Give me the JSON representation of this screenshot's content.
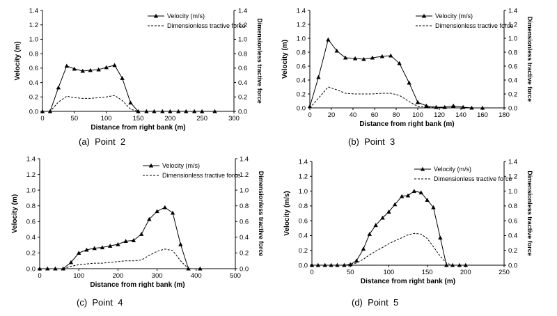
{
  "chart_data": [
    {
      "type": "line",
      "caption": "(a)  Point  2",
      "xlabel": "Distance from right bank (m)",
      "ylabel": "Velocity (m)",
      "y2label": "Dimensionless tractive force",
      "xlim": [
        0,
        300
      ],
      "xticks": [
        0,
        50,
        100,
        150,
        200,
        250,
        300
      ],
      "ylim": [
        0,
        1.4
      ],
      "yticks": [
        "0.0",
        "0.2",
        "0.4",
        "0.6",
        "0.8",
        "1.0",
        "1.2",
        "1.4"
      ],
      "y2ticks": [
        "0.0",
        "0.2",
        "0.4",
        "0.6",
        "0.8",
        "1.0",
        "1.2",
        "1.4"
      ],
      "legend_position": "top-right",
      "series": [
        {
          "name": "Velocity (m/s)",
          "style": "solid-triangle",
          "x": [
            0,
            12,
            25,
            38,
            50,
            63,
            75,
            88,
            100,
            113,
            125,
            138,
            150,
            163,
            175,
            188,
            200,
            213,
            225,
            238,
            250,
            270
          ],
          "y": [
            0,
            0,
            0.33,
            0.63,
            0.59,
            0.56,
            0.57,
            0.58,
            0.61,
            0.64,
            0.46,
            0.12,
            0,
            0,
            0,
            0,
            0,
            0,
            0,
            0,
            0,
            0
          ]
        },
        {
          "name": "Dimensionless tractive force",
          "style": "dashed",
          "x": [
            0,
            12,
            25,
            38,
            50,
            63,
            75,
            88,
            100,
            113,
            125,
            138,
            150
          ],
          "y": [
            0,
            0,
            0.13,
            0.21,
            0.19,
            0.18,
            0.18,
            0.19,
            0.2,
            0.22,
            0.15,
            0.03,
            0
          ]
        }
      ]
    },
    {
      "type": "line",
      "caption": "(b)  Point  3",
      "xlabel": "Distance from right bank (m)",
      "ylabel": "Velocity (m)",
      "y2label": "Dimensionless tractive force",
      "xlim": [
        0,
        180
      ],
      "xticks": [
        0,
        20,
        40,
        60,
        80,
        100,
        120,
        140,
        160,
        180
      ],
      "ylim": [
        0,
        1.4
      ],
      "yticks": [
        "0.0",
        "0.2",
        "0.4",
        "0.6",
        "0.8",
        "1.0",
        "1.2",
        "1.4"
      ],
      "y2ticks": [
        "0.0",
        "0.2",
        "0.4",
        "0.6",
        "0.8",
        "1.0",
        "1.2",
        "1.4"
      ],
      "legend_position": "top-right",
      "series": [
        {
          "name": "Velocity (m/s)",
          "style": "solid-triangle",
          "x": [
            0,
            8,
            17,
            25,
            33,
            42,
            50,
            58,
            67,
            75,
            83,
            92,
            100,
            108,
            117,
            125,
            133,
            142,
            150,
            160
          ],
          "y": [
            0.02,
            0.44,
            0.98,
            0.82,
            0.72,
            0.71,
            0.7,
            0.72,
            0.74,
            0.75,
            0.64,
            0.36,
            0.08,
            0.03,
            0.01,
            0.01,
            0.03,
            0.01,
            0,
            0
          ]
        },
        {
          "name": "Dimensionless tractive force",
          "style": "dashed",
          "x": [
            0,
            8,
            17,
            25,
            33,
            42,
            50,
            58,
            67,
            75,
            83,
            92,
            100,
            108,
            117,
            125
          ],
          "y": [
            0,
            0.14,
            0.3,
            0.26,
            0.21,
            0.2,
            0.2,
            0.2,
            0.21,
            0.21,
            0.18,
            0.09,
            0.02,
            0.01,
            0,
            0
          ]
        }
      ]
    },
    {
      "type": "line",
      "caption": "(c)  Point  4",
      "xlabel": "Distance from right bank (m)",
      "ylabel": "Velocity (m)",
      "y2label": "Dimensionless tractive force",
      "xlim": [
        0,
        500
      ],
      "xticks": [
        0,
        100,
        200,
        300,
        400,
        500
      ],
      "ylim": [
        0,
        1.4
      ],
      "yticks": [
        "0.0",
        "0.2",
        "0.4",
        "0.6",
        "0.8",
        "1.0",
        "1.2",
        "1.4"
      ],
      "y2ticks": [
        "0.0",
        "0.2",
        "0.4",
        "0.6",
        "0.8",
        "1.0",
        "1.2",
        "1.4"
      ],
      "legend_position": "top-right",
      "series": [
        {
          "name": "Velocity (m/s)",
          "style": "solid-triangle",
          "x": [
            0,
            20,
            40,
            60,
            80,
            100,
            120,
            140,
            160,
            180,
            200,
            220,
            240,
            260,
            280,
            300,
            320,
            340,
            360,
            380,
            410
          ],
          "y": [
            0,
            0,
            0,
            0,
            0.08,
            0.2,
            0.24,
            0.26,
            0.27,
            0.29,
            0.31,
            0.35,
            0.36,
            0.44,
            0.63,
            0.73,
            0.78,
            0.71,
            0.31,
            0,
            0
          ]
        },
        {
          "name": "Dimensionless tractive force",
          "style": "dashed",
          "x": [
            60,
            80,
            100,
            120,
            140,
            160,
            180,
            200,
            220,
            240,
            260,
            280,
            300,
            320,
            340,
            360,
            380
          ],
          "y": [
            0,
            0.03,
            0.05,
            0.06,
            0.07,
            0.07,
            0.08,
            0.09,
            0.1,
            0.1,
            0.11,
            0.17,
            0.22,
            0.25,
            0.23,
            0.1,
            0
          ]
        }
      ]
    },
    {
      "type": "line",
      "caption": "(d)  Point  5",
      "xlabel": "Distance from right bank (m)",
      "ylabel": "Velocity (m/s)",
      "y2label": "Dimensionless tractive force",
      "xlim": [
        0,
        250
      ],
      "xticks": [
        0,
        50,
        100,
        150,
        200,
        250
      ],
      "ylim": [
        0,
        1.4
      ],
      "yticks": [
        "0.0",
        "0.2",
        "0.4",
        "0.6",
        "0.8",
        "1.0",
        "1.2",
        "1.4"
      ],
      "y2ticks": [
        "0.0",
        "0.2",
        "0.4",
        "0.6",
        "0.8",
        "1.0",
        "1.2",
        "1.4"
      ],
      "legend_position": "top-right",
      "series": [
        {
          "name": "Velocity (m/s)",
          "style": "solid-triangle",
          "x": [
            0,
            8,
            17,
            25,
            33,
            42,
            50,
            58,
            67,
            75,
            83,
            92,
            100,
            108,
            117,
            125,
            133,
            142,
            150,
            158,
            167,
            175,
            183,
            192,
            200
          ],
          "y": [
            0,
            0,
            0,
            0,
            0,
            0,
            0.01,
            0.06,
            0.22,
            0.42,
            0.54,
            0.64,
            0.72,
            0.82,
            0.93,
            0.94,
            1.0,
            0.98,
            0.88,
            0.78,
            0.37,
            0,
            0,
            0,
            0
          ]
        },
        {
          "name": "Dimensionless tractive force",
          "style": "dashed",
          "x": [
            42,
            50,
            58,
            67,
            75,
            83,
            92,
            100,
            108,
            117,
            125,
            133,
            142,
            150,
            158,
            167,
            175,
            183
          ],
          "y": [
            0,
            0.01,
            0.03,
            0.08,
            0.14,
            0.19,
            0.24,
            0.29,
            0.33,
            0.37,
            0.41,
            0.43,
            0.42,
            0.36,
            0.25,
            0.12,
            0.03,
            0
          ]
        }
      ]
    }
  ]
}
